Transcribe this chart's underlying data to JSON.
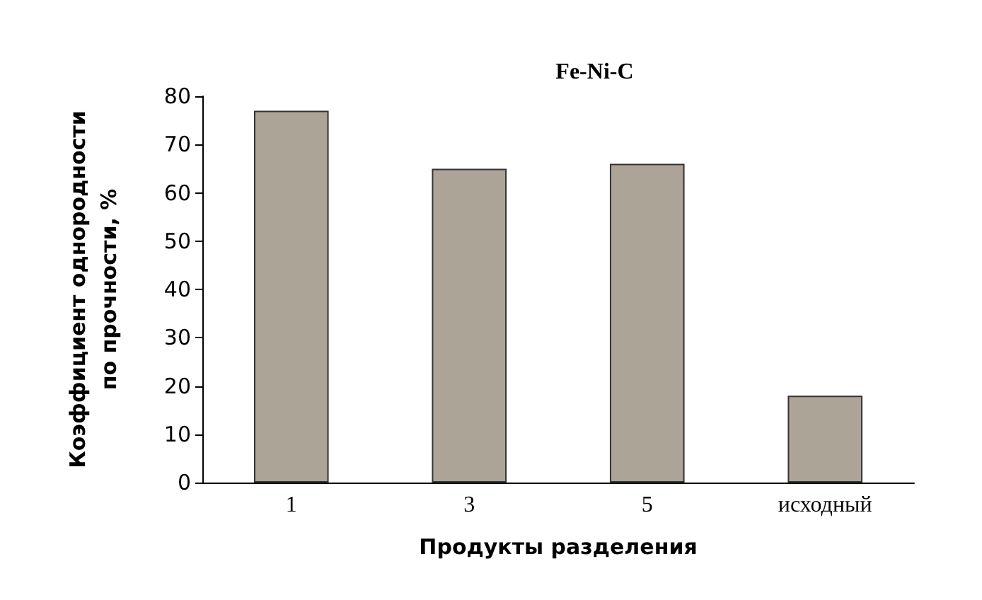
{
  "chart_data": {
    "type": "bar",
    "title": "Fe-Ni-C",
    "xlabel": "Продукты разделения",
    "ylabel": "Коэффициент однородности\nпо прочности, %",
    "categories": [
      "1",
      "3",
      "5",
      "исходный"
    ],
    "values": [
      77,
      65,
      66,
      18
    ],
    "color": "#aba497",
    "ylim": [
      0,
      80
    ],
    "yticks": [
      0,
      10,
      20,
      30,
      40,
      50,
      60,
      70,
      80
    ],
    "grid": false
  }
}
